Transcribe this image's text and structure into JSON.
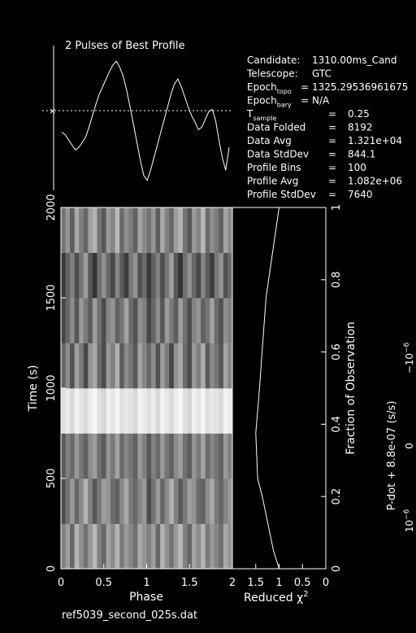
{
  "profile": {
    "title": "2 Pulses of Best Profile",
    "values": [
      0.42,
      0.4,
      0.36,
      0.32,
      0.28,
      0.3,
      0.34,
      0.38,
      0.46,
      0.55,
      0.64,
      0.72,
      0.78,
      0.84,
      0.9,
      0.95,
      0.98,
      0.93,
      0.86,
      0.75,
      0.62,
      0.48,
      0.34,
      0.2,
      0.08,
      0.04,
      0.12,
      0.22,
      0.32,
      0.42,
      0.52,
      0.62,
      0.72,
      0.8,
      0.84,
      0.78,
      0.7,
      0.62,
      0.55,
      0.5,
      0.44,
      0.46,
      0.52,
      0.58,
      0.6,
      0.52,
      0.36,
      0.22,
      0.12,
      0.3
    ]
  },
  "info": {
    "rows": [
      {
        "label": "Candidate:",
        "sub": "",
        "value": "1310.00ms_Cand",
        "eq": ""
      },
      {
        "label": "Telescope:",
        "sub": "",
        "value": "GTC",
        "eq": ""
      },
      {
        "label": "Epoch",
        "sub": "topo",
        "value": "1325.29536961675",
        "eq": "="
      },
      {
        "label": "Epoch",
        "sub": "bary",
        "value": "N/A",
        "eq": "="
      },
      {
        "label": "T",
        "sub": "sample",
        "value": "0.25",
        "eq": "="
      },
      {
        "label": "Data Folded",
        "sub": "",
        "value": "8192",
        "eq": "="
      },
      {
        "label": "Data Avg",
        "sub": "",
        "value": "1.321e+04",
        "eq": "="
      },
      {
        "label": "Data StdDev",
        "sub": "",
        "value": "844.1",
        "eq": "="
      },
      {
        "label": "Profile Bins",
        "sub": "",
        "value": "100",
        "eq": "="
      },
      {
        "label": "Profile Avg",
        "sub": "",
        "value": "1.082e+06",
        "eq": "="
      },
      {
        "label": "Profile StdDev",
        "sub": "",
        "value": "7640",
        "eq": "="
      }
    ]
  },
  "chart_data": [
    {
      "type": "heatmap",
      "xlabel": "Phase",
      "ylabel": "Time (s)",
      "xlim": [
        0,
        2
      ],
      "ylim": [
        0,
        2000
      ],
      "x_ticks": [
        "0",
        "0.5",
        "1",
        "1.5",
        "2"
      ],
      "y_ticks": [
        "0",
        "500",
        "1000",
        "1500",
        "2000"
      ],
      "colormap": [
        "#000000",
        "#ffffff"
      ],
      "rows": [
        [
          0.5,
          0.62,
          0.4,
          0.7,
          0.56,
          0.45,
          0.6,
          0.72,
          0.5,
          0.4,
          0.64,
          0.55,
          0.7,
          0.48,
          0.6,
          0.52,
          0.44,
          0.66,
          0.58,
          0.5,
          0.62,
          0.4,
          0.7,
          0.56,
          0.45,
          0.6,
          0.72,
          0.5,
          0.4,
          0.64,
          0.55,
          0.7,
          0.48,
          0.6,
          0.52,
          0.44,
          0.66,
          0.58
        ],
        [
          0.3,
          0.45,
          0.6,
          0.4,
          0.55,
          0.7,
          0.5,
          0.35,
          0.48,
          0.62,
          0.58,
          0.42,
          0.38,
          0.55,
          0.66,
          0.48,
          0.4,
          0.52,
          0.6,
          0.3,
          0.45,
          0.6,
          0.4,
          0.55,
          0.7,
          0.5,
          0.35,
          0.48,
          0.62,
          0.58,
          0.42,
          0.38,
          0.55,
          0.66,
          0.48,
          0.4,
          0.52,
          0.6
        ],
        [
          0.35,
          0.5,
          0.42,
          0.6,
          0.46,
          0.38,
          0.55,
          0.62,
          0.44,
          0.36,
          0.58,
          0.48,
          0.64,
          0.42,
          0.52,
          0.46,
          0.38,
          0.6,
          0.5,
          0.35,
          0.5,
          0.42,
          0.6,
          0.46,
          0.38,
          0.55,
          0.62,
          0.44,
          0.36,
          0.58,
          0.48,
          0.64,
          0.42,
          0.52,
          0.46,
          0.38,
          0.6,
          0.5
        ],
        [
          0.88,
          0.92,
          0.85,
          0.95,
          0.9,
          0.86,
          0.93,
          0.97,
          0.88,
          0.84,
          0.94,
          0.9,
          0.96,
          0.87,
          0.91,
          0.89,
          0.85,
          0.95,
          0.92,
          0.88,
          0.92,
          0.85,
          0.95,
          0.9,
          0.86,
          0.93,
          0.97,
          0.88,
          0.84,
          0.94,
          0.9,
          0.96,
          0.87,
          0.91,
          0.89,
          0.85,
          0.95,
          0.92
        ],
        [
          0.4,
          0.55,
          0.32,
          0.62,
          0.48,
          0.28,
          0.58,
          0.66,
          0.42,
          0.3,
          0.6,
          0.5,
          0.68,
          0.36,
          0.54,
          0.46,
          0.34,
          0.64,
          0.52,
          0.4,
          0.55,
          0.32,
          0.62,
          0.48,
          0.28,
          0.58,
          0.66,
          0.42,
          0.3,
          0.6,
          0.5,
          0.68,
          0.36,
          0.54,
          0.46,
          0.34,
          0.64,
          0.52
        ],
        [
          0.28,
          0.4,
          0.55,
          0.34,
          0.6,
          0.48,
          0.36,
          0.62,
          0.44,
          0.3,
          0.52,
          0.58,
          0.38,
          0.46,
          0.64,
          0.42,
          0.32,
          0.56,
          0.5,
          0.28,
          0.4,
          0.55,
          0.34,
          0.6,
          0.48,
          0.36,
          0.62,
          0.44,
          0.3,
          0.52,
          0.58,
          0.38,
          0.46,
          0.64,
          0.42,
          0.32,
          0.56,
          0.5
        ],
        [
          0.22,
          0.38,
          0.5,
          0.3,
          0.46,
          0.62,
          0.34,
          0.2,
          0.44,
          0.56,
          0.4,
          0.28,
          0.52,
          0.36,
          0.24,
          0.48,
          0.58,
          0.32,
          0.42,
          0.22,
          0.38,
          0.5,
          0.3,
          0.46,
          0.62,
          0.34,
          0.2,
          0.44,
          0.56,
          0.4,
          0.28,
          0.52,
          0.36,
          0.24,
          0.48,
          0.58,
          0.32,
          0.42
        ],
        [
          0.45,
          0.58,
          0.36,
          0.66,
          0.5,
          0.4,
          0.62,
          0.7,
          0.46,
          0.34,
          0.6,
          0.52,
          0.72,
          0.42,
          0.56,
          0.48,
          0.38,
          0.64,
          0.54,
          0.45,
          0.58,
          0.36,
          0.66,
          0.5,
          0.4,
          0.62,
          0.7,
          0.46,
          0.34,
          0.6,
          0.52,
          0.72,
          0.42,
          0.56,
          0.48,
          0.38,
          0.64,
          0.54
        ]
      ]
    },
    {
      "type": "line",
      "xlabel": "Reduced χ",
      "xlabel_sup": "2",
      "x_ticks": [
        "2",
        "1.5",
        "1",
        "0.5",
        "0"
      ],
      "xlim": [
        2,
        0
      ],
      "ylabel": "Fraction of Observation",
      "y_ticks": [
        "0",
        "0.2",
        "0.4",
        "0.6",
        "0.8",
        "1"
      ],
      "ylim": [
        0,
        1
      ],
      "series": [
        {
          "x": [
            1.0,
            1.12,
            1.24,
            1.36,
            1.46,
            1.5,
            1.42,
            1.35,
            1.28,
            1.0
          ],
          "y": [
            0.0,
            0.05,
            0.125,
            0.2,
            0.25,
            0.375,
            0.5,
            0.625,
            0.75,
            1.0
          ]
        }
      ]
    },
    {
      "type": "line",
      "ylabel": "P-dot + 8.8e-07 (s/s)",
      "y_ticks": [
        "10",
        "0",
        "−10"
      ],
      "y_tick_exp": "−6",
      "series": []
    }
  ],
  "footer": {
    "filename": "ref5039_second_025s.dat"
  }
}
